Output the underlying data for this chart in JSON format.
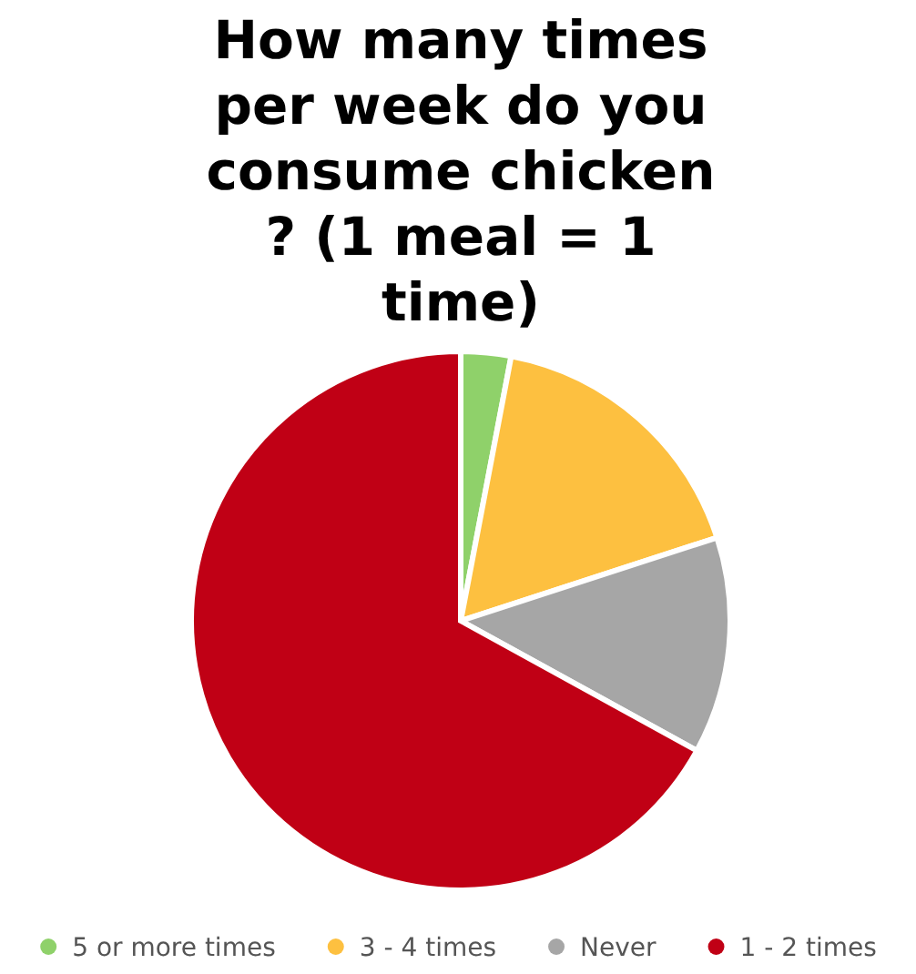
{
  "chart_data": {
    "type": "pie",
    "title": "How many times per week do you consume chicken ? (1 meal = 1 time)",
    "categories": [
      "5 or more times",
      "3 - 4 times",
      "Never",
      "1 - 2 times"
    ],
    "values": [
      3,
      17,
      13,
      67
    ],
    "colors": [
      "#8fd16a",
      "#fdc040",
      "#a6a6a6",
      "#c00015"
    ],
    "legend": "bottom"
  }
}
